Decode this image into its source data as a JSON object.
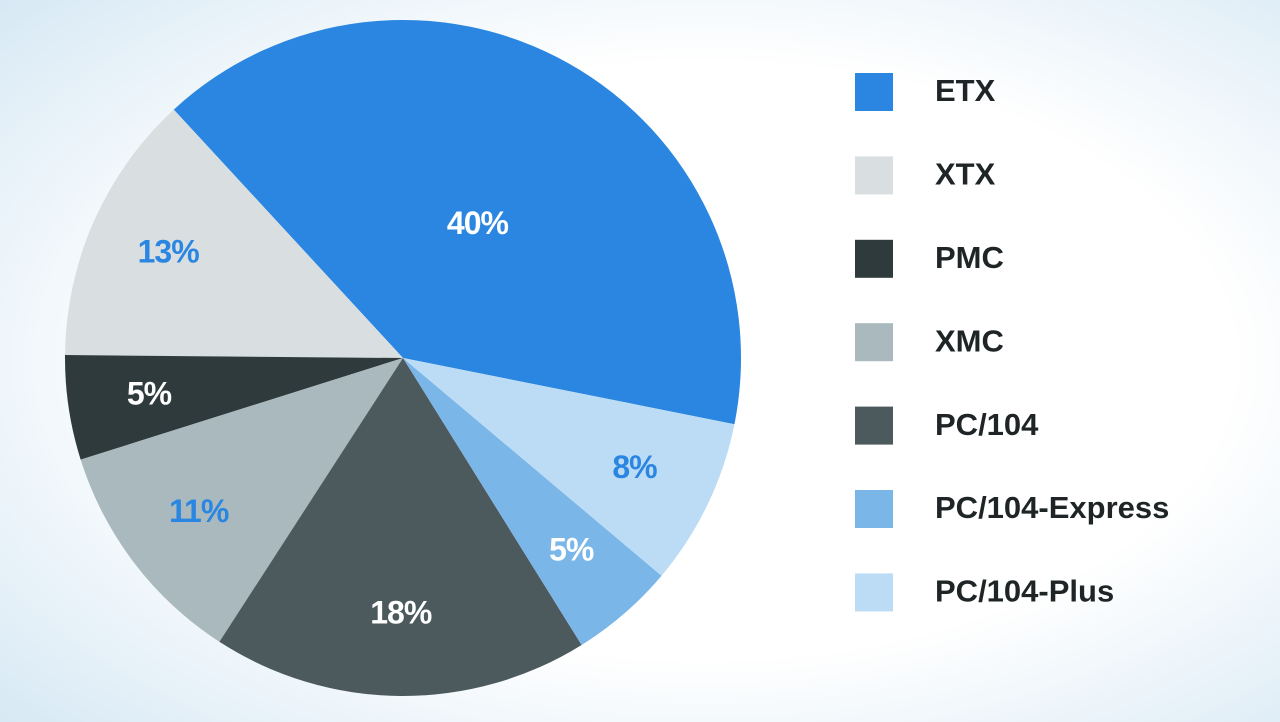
{
  "chart_data": {
    "type": "pie",
    "categories": [
      "ETX",
      "XTX",
      "PMC",
      "XMC",
      "PC/104",
      "PC/104-Express",
      "PC/104-Plus"
    ],
    "values": [
      40,
      13,
      5,
      11,
      18,
      5,
      8
    ],
    "value_labels": [
      "40%",
      "13%",
      "5%",
      "11%",
      "18%",
      "5%",
      "8%"
    ],
    "colors": [
      "#2a86e0",
      "#d9dfe0",
      "#2f3a3c",
      "#a9b9bd",
      "#4d5a5d",
      "#7ab6e8",
      "#bcdcf5"
    ],
    "label_colors": [
      "#ffffff",
      "#2a86e0",
      "#ffffff",
      "#2a86e0",
      "#ffffff",
      "#ffffff",
      "#2a86e0"
    ],
    "legend": "right"
  }
}
